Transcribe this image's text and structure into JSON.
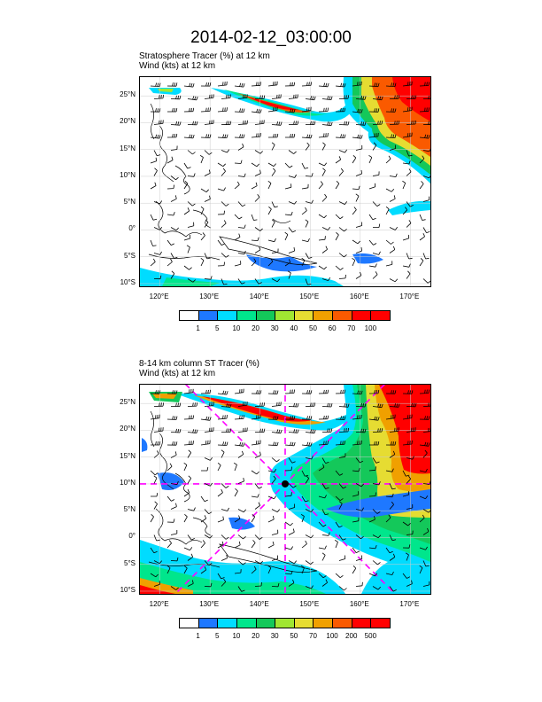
{
  "title": "2014-02-12_03:00:00",
  "panels": [
    {
      "id": "top",
      "subtitle_line1": "Stratosphere Tracer   (%)     at   12 km",
      "subtitle_line2": "Wind    (kts)      at   12 km",
      "lat_labels": [
        "25°N",
        "20°N",
        "15°N",
        "10°N",
        "5°N",
        "0°",
        "5°S",
        "10°S"
      ],
      "lon_labels": [
        "120°E",
        "130°E",
        "140°E",
        "150°E",
        "160°E",
        "170°E"
      ],
      "colorbar_levels": [
        "1",
        "5",
        "10",
        "20",
        "30",
        "40",
        "50",
        "60",
        "70",
        "100"
      ],
      "colorbar_colors": [
        "#ffffff",
        "#1e78ff",
        "#00dcff",
        "#00e68c",
        "#14c85a",
        "#a0e632",
        "#e6dc32",
        "#f0a000",
        "#fa5a00",
        "#ff0000",
        "#ff0000"
      ]
    },
    {
      "id": "bottom",
      "subtitle_line1": "8-14 km column ST Tracer   (%)",
      "subtitle_line2": "Wind    (kts)      at   12 km",
      "lat_labels": [
        "25°N",
        "20°N",
        "15°N",
        "10°N",
        "5°N",
        "0°",
        "5°S",
        "10°S"
      ],
      "lon_labels": [
        "120°E",
        "130°E",
        "140°E",
        "150°E",
        "160°E",
        "170°E"
      ],
      "colorbar_levels": [
        "1",
        "5",
        "10",
        "20",
        "30",
        "50",
        "70",
        "100",
        "200",
        "500"
      ],
      "colorbar_colors": [
        "#ffffff",
        "#1e78ff",
        "#00dcff",
        "#00e68c",
        "#14c85a",
        "#a0e632",
        "#e6dc32",
        "#f0a000",
        "#fa5a00",
        "#ff0000",
        "#ff0000"
      ]
    }
  ],
  "map": {
    "lon_range": [
      116,
      174
    ],
    "lat_range": [
      -10.5,
      28.5
    ],
    "lat_values": [
      25,
      20,
      15,
      10,
      5,
      0,
      -5,
      -10
    ],
    "lon_values": [
      120,
      130,
      140,
      150,
      160,
      170
    ],
    "cross_marker": {
      "lon": 145,
      "lat": 10,
      "color": "#ff00ff"
    }
  }
}
